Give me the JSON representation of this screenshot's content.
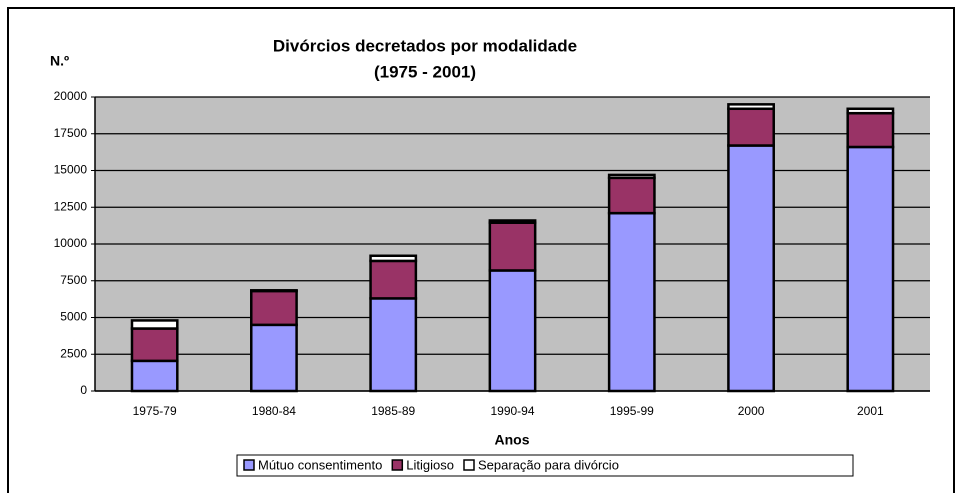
{
  "chart_data": {
    "type": "stacked_bar",
    "title": "Divórcios decretados por modalidade",
    "subtitle": "(1975 - 2001)",
    "y_label": "N.º",
    "x_label": "Anos",
    "categories": [
      "1975-79",
      "1980-84",
      "1985-89",
      "1990-94",
      "1995-99",
      "2000",
      "2001"
    ],
    "series": [
      {
        "name": "Mútuo consentimento",
        "color": "#9999ff",
        "values": [
          2050,
          4500,
          6300,
          8200,
          12100,
          16700,
          16600
        ]
      },
      {
        "name": "Litigioso",
        "color": "#993366",
        "values": [
          2200,
          2300,
          2550,
          3250,
          2400,
          2500,
          2300
        ]
      },
      {
        "name": "Separação para divórcio",
        "color": "#ffffff",
        "values": [
          550,
          50,
          350,
          150,
          200,
          300,
          300
        ]
      }
    ],
    "ylim": [
      0,
      20000
    ],
    "yticks": [
      0,
      2500,
      5000,
      7500,
      10000,
      12500,
      15000,
      17500,
      20000
    ],
    "grid": true,
    "legend": "bottom"
  }
}
